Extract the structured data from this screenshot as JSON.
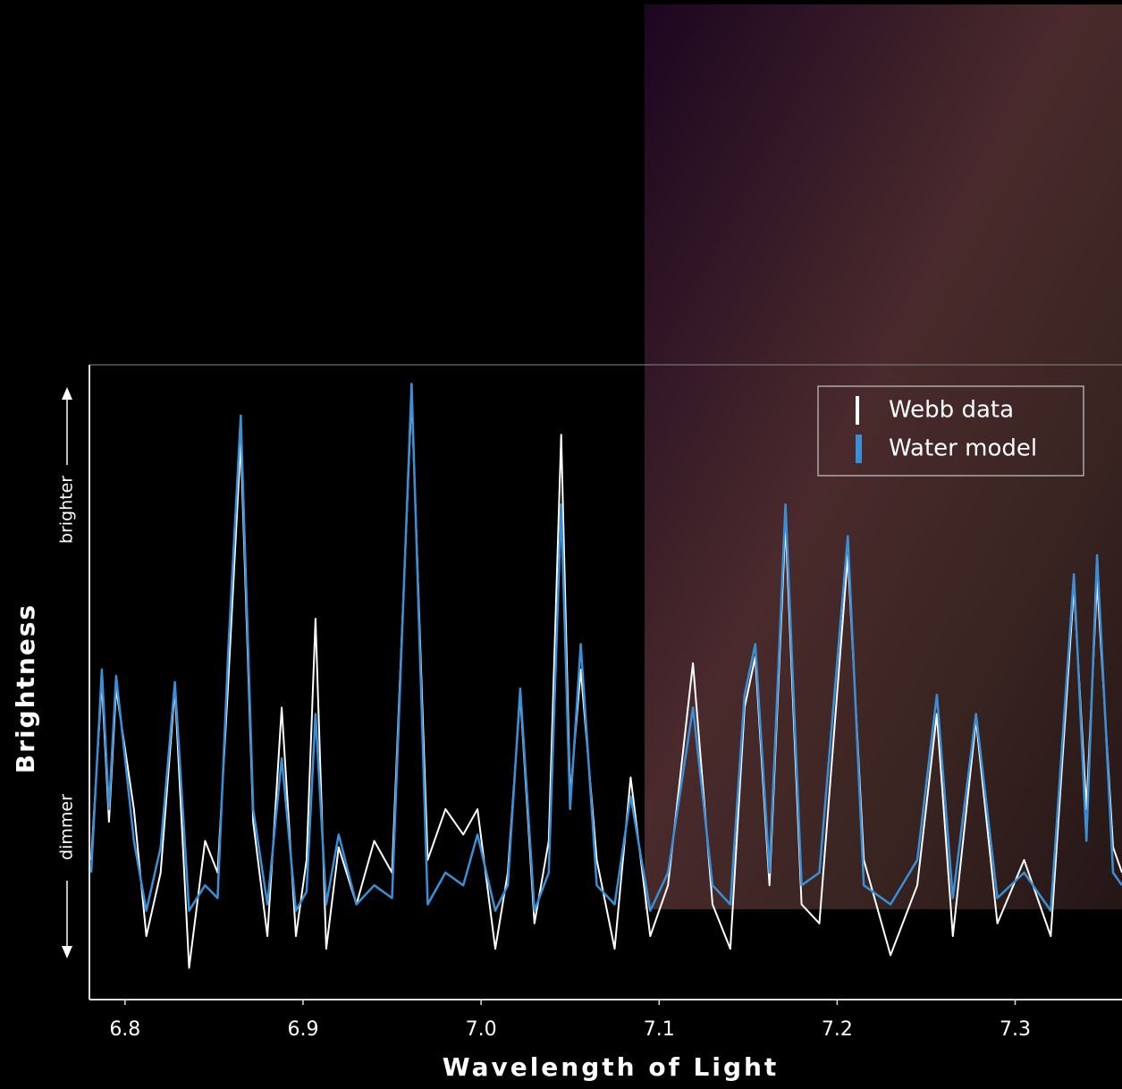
{
  "chart_data": {
    "type": "line",
    "xlabel": "Wavelength of Light",
    "ylabel": "Brightness",
    "y_high_label": "brighter",
    "y_low_label": "dimmer",
    "xlim": [
      6.78,
      7.36
    ],
    "ylim": [
      0,
      100
    ],
    "xticks": [
      6.8,
      6.9,
      {
        "value": 7,
        "label": "7.0"
      },
      7.1,
      7.2,
      7.3
    ],
    "legend": "upper right",
    "x": [
      6.781,
      6.787,
      6.791,
      6.795,
      6.805,
      6.812,
      6.82,
      6.828,
      6.836,
      6.845,
      6.852,
      6.858,
      6.865,
      6.872,
      6.88,
      6.888,
      6.896,
      6.902,
      6.907,
      6.913,
      6.92,
      6.93,
      6.94,
      6.95,
      6.961,
      6.97,
      6.98,
      6.99,
      6.998,
      7.008,
      7.015,
      7.022,
      7.03,
      7.038,
      7.045,
      7.05,
      7.056,
      7.065,
      7.075,
      7.084,
      7.095,
      7.105,
      7.119,
      7.13,
      7.14,
      7.148,
      7.154,
      7.162,
      7.171,
      7.18,
      7.19,
      7.206,
      7.215,
      7.23,
      7.245,
      7.256,
      7.265,
      7.278,
      7.29,
      7.305,
      7.32,
      7.333,
      7.34,
      7.346,
      7.355,
      7.36
    ],
    "series": [
      {
        "name": "Webb data",
        "color": "#ffffff",
        "values": [
          22,
          50,
          28,
          49,
          30,
          10,
          20,
          49,
          5,
          25,
          20,
          50,
          88,
          28,
          10,
          46,
          10,
          22,
          60,
          8,
          24,
          15,
          25,
          20,
          95,
          22,
          30,
          26,
          30,
          8,
          20,
          48,
          12,
          25,
          89,
          32,
          52,
          22,
          8,
          35,
          10,
          18,
          53,
          15,
          8,
          46,
          54,
          18,
          75,
          15,
          12,
          70,
          22,
          7,
          18,
          45,
          10,
          44,
          12,
          22,
          10,
          65,
          30,
          66,
          24,
          20
        ]
      },
      {
        "name": "Water model",
        "color": "#3a8fd6",
        "values": [
          20,
          52,
          30,
          51,
          25,
          14,
          24,
          50,
          14,
          18,
          16,
          55,
          92,
          30,
          15,
          38,
          14,
          17,
          45,
          15,
          26,
          15,
          18,
          16,
          97,
          15,
          20,
          18,
          26,
          14,
          18,
          49,
          14,
          20,
          78,
          30,
          56,
          18,
          15,
          32,
          14,
          20,
          46,
          18,
          15,
          48,
          56,
          20,
          78,
          18,
          20,
          73,
          18,
          15,
          22,
          48,
          16,
          45,
          16,
          20,
          14,
          67,
          25,
          70,
          20,
          18
        ]
      }
    ]
  }
}
